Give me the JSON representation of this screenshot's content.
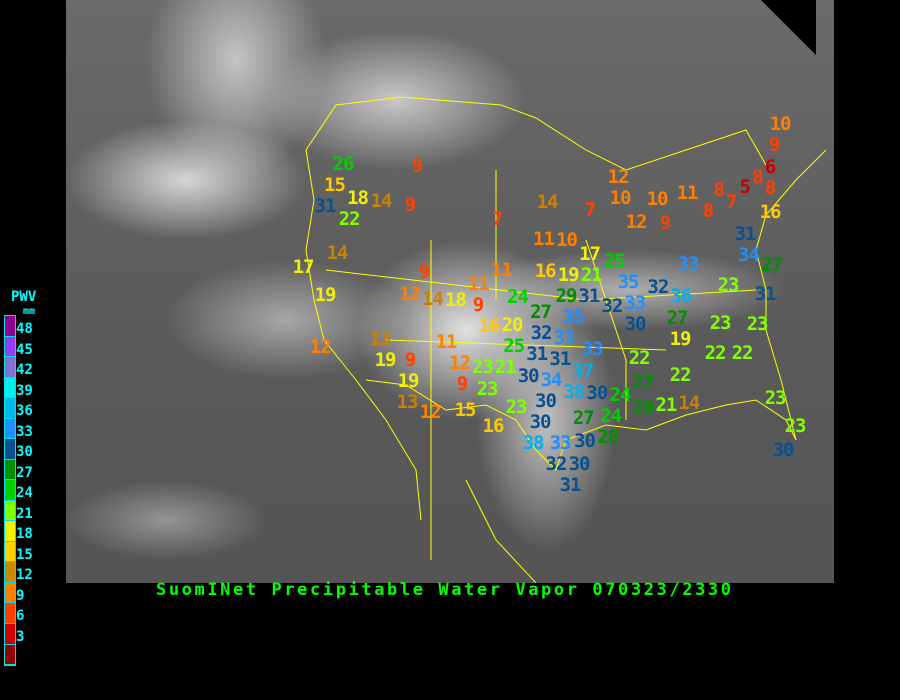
{
  "title": "SuomINet Precipitable Water Vapor 070323/2330",
  "legend": {
    "title": "PWV",
    "unit": "mm",
    "ticks": [
      "48",
      "45",
      "42",
      "39",
      "36",
      "33",
      "30",
      "27",
      "24",
      "21",
      "18",
      "15",
      "12",
      "9",
      "6",
      "3"
    ],
    "colors": [
      "#900090",
      "#9040f0",
      "#8070d0",
      "#00f0f0",
      "#00b8e8",
      "#2090ff",
      "#0a5090",
      "#009000",
      "#00d000",
      "#80ff00",
      "#f0f000",
      "#ffd000",
      "#cc8800",
      "#ff8000",
      "#ff4000",
      "#d00000",
      "#900000"
    ]
  },
  "map_colors": {
    "borders": "#ffff00",
    "background": "#000000"
  },
  "stations": [
    26,
    15,
    31,
    18,
    14,
    9,
    22,
    9,
    7,
    14,
    17,
    19,
    9,
    12,
    14,
    11,
    9,
    11,
    16,
    20,
    12,
    13,
    19,
    9,
    11,
    19,
    12,
    9,
    23,
    21,
    23,
    13,
    12,
    15,
    16,
    23,
    30,
    30,
    25,
    27,
    29,
    32,
    33,
    35,
    31,
    31,
    33,
    30,
    34,
    37,
    38,
    30,
    31,
    32,
    33,
    35,
    32,
    36,
    33,
    30,
    27,
    19,
    22,
    27,
    22,
    24,
    29,
    21,
    14,
    27,
    24,
    28,
    30,
    38,
    33,
    32,
    30,
    31,
    17,
    25,
    21,
    16,
    19,
    11,
    10,
    14,
    7,
    12,
    10,
    10,
    11,
    12,
    9,
    8,
    7,
    8,
    5,
    8,
    8,
    6,
    9,
    10,
    16,
    31,
    34,
    27,
    31,
    23,
    23,
    23,
    22,
    22,
    23,
    23,
    30,
    24,
    18
  ]
}
